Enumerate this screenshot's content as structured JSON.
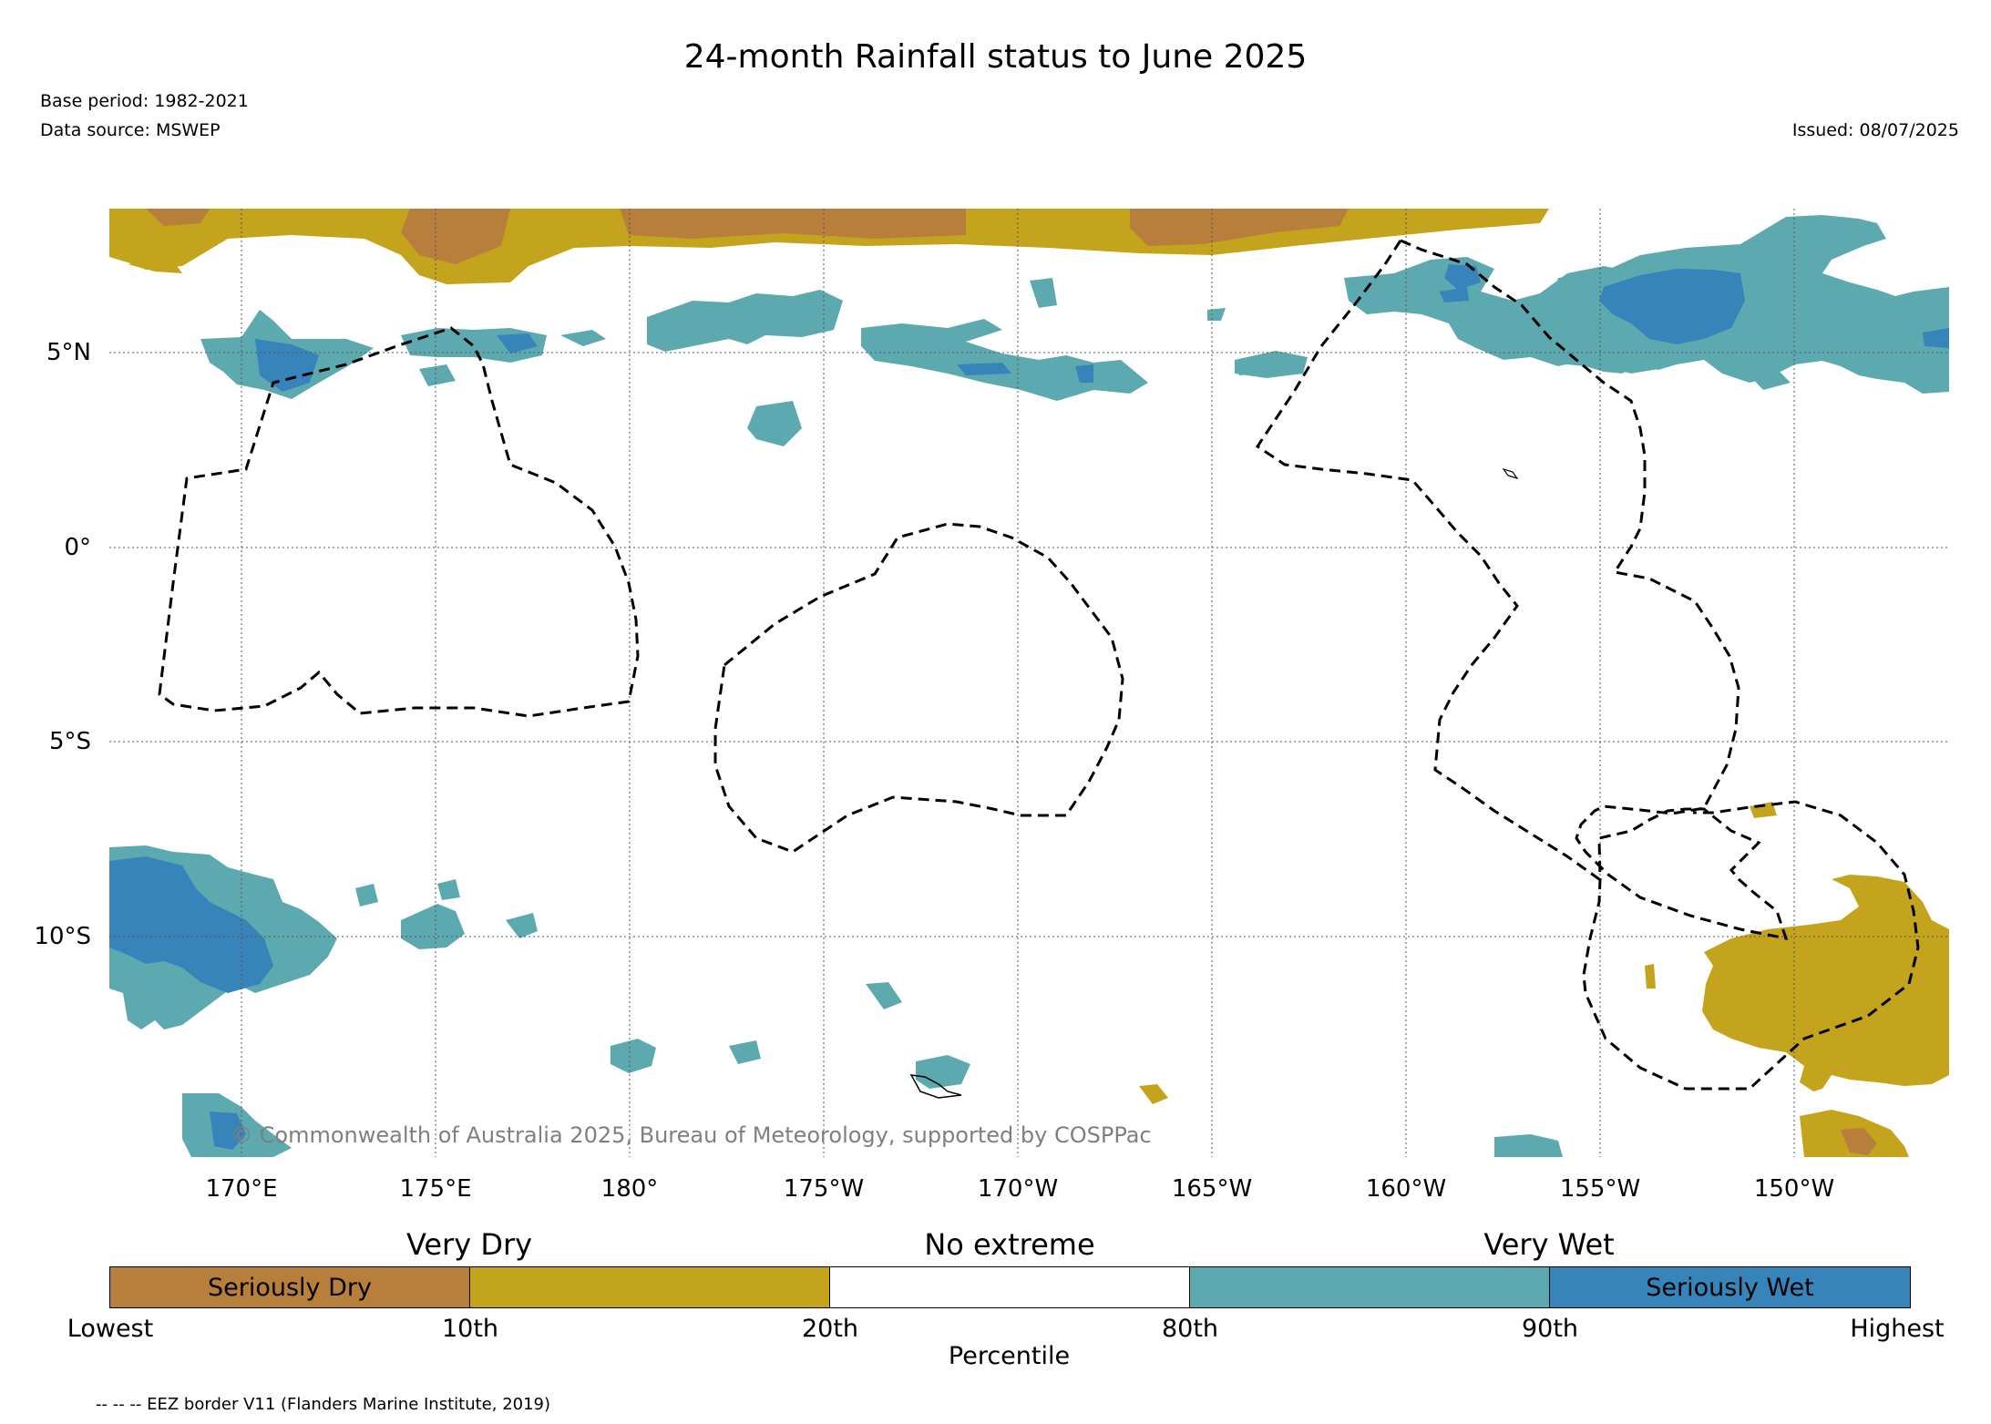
{
  "header": {
    "title": "24-month Rainfall status to June 2025",
    "base_period": "Base period: 1982-2021",
    "data_source": "Data source: MSWEP",
    "issued": "Issued: 08/07/2025"
  },
  "map": {
    "lat_labels": [
      "5°N",
      "0°",
      "5°S",
      "10°S"
    ],
    "lon_labels": [
      "170°E",
      "175°E",
      "180°",
      "175°W",
      "170°W",
      "165°W",
      "160°W",
      "155°W",
      "150°W"
    ],
    "copyright": "© Commonwealth of Australia 2025, Bureau of Meteorology, supported by COSPPac",
    "colors": {
      "seriously_dry": "#b77f3b",
      "very_dry": "#c4a41c",
      "very_wet": "#5ca9b0",
      "seriously_wet": "#3684b9",
      "eez_border": "#000000"
    }
  },
  "legend": {
    "category_labels": [
      "Very Dry",
      "No extreme",
      "Very Wet"
    ],
    "segments": [
      {
        "label": "Seriously Dry",
        "color": "#b77f3b"
      },
      {
        "label": "",
        "color": "#c4a41c"
      },
      {
        "label": "",
        "color": "#ffffff"
      },
      {
        "label": "",
        "color": "#5ca9b0"
      },
      {
        "label": "Seriously Wet",
        "color": "#3684b9"
      }
    ],
    "ticks": [
      "Lowest",
      "10th",
      "20th",
      "80th",
      "90th",
      "Highest"
    ],
    "axis_label": "Percentile"
  },
  "footer": {
    "eez_note": "-- -- -- EEZ border V11 (Flanders Marine Institute, 2019)"
  }
}
